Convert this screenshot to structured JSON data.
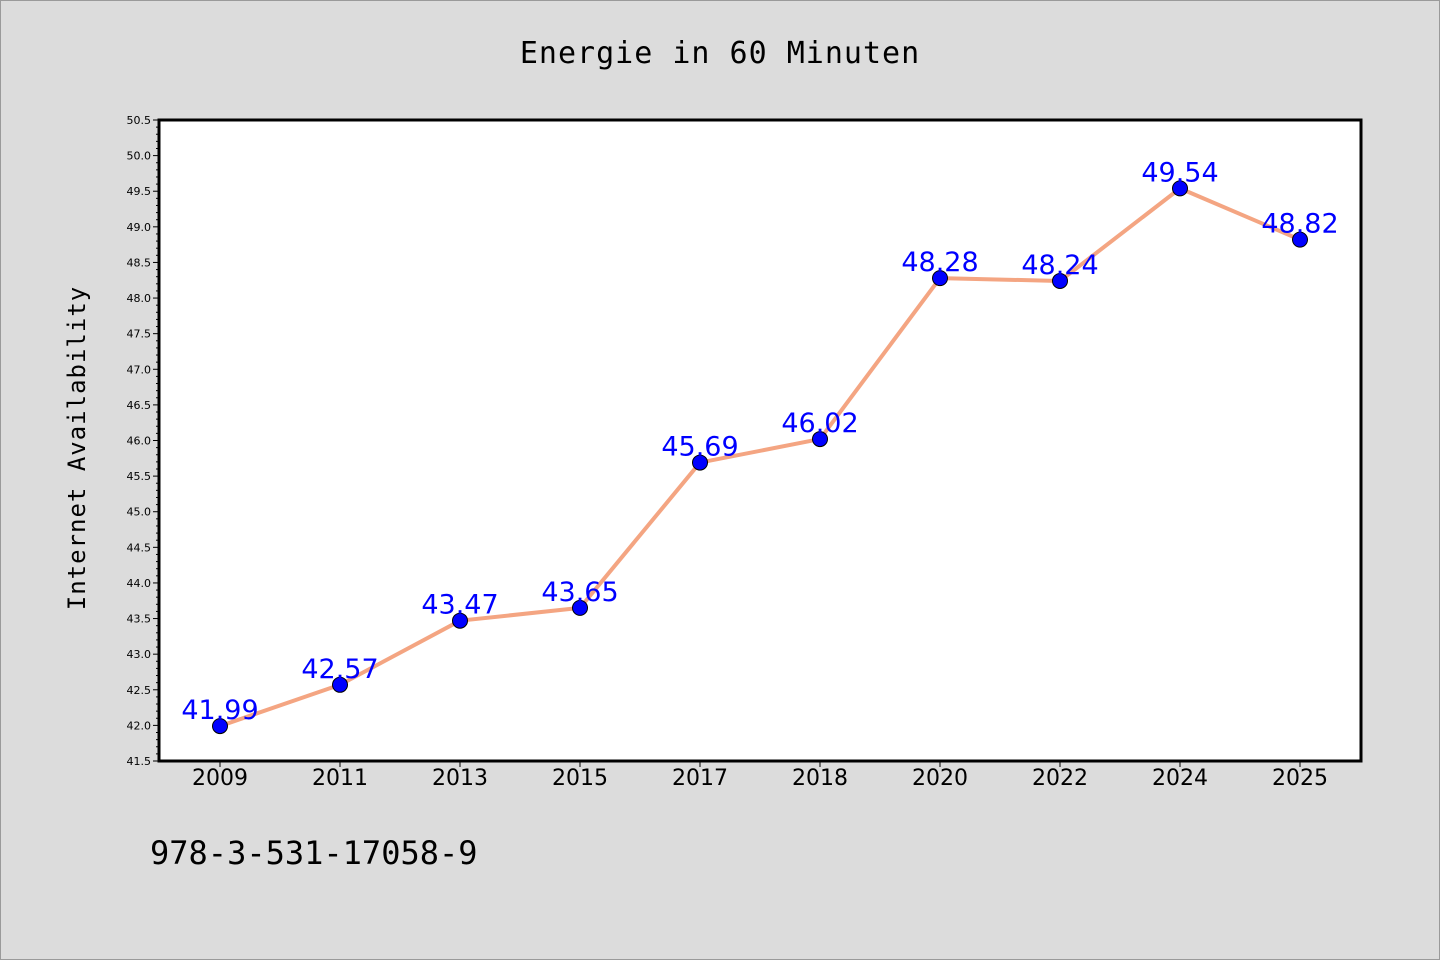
{
  "chart_data": {
    "type": "line",
    "title": "Energie in 60 Minuten",
    "xlabel": "",
    "ylabel": "Internet Availability",
    "categories": [
      "2009",
      "2011",
      "2013",
      "2015",
      "2017",
      "2018",
      "2020",
      "2022",
      "2024",
      "2025"
    ],
    "series": [
      {
        "values": [
          41.99,
          42.57,
          43.47,
          43.65,
          45.69,
          46.02,
          48.28,
          48.24,
          49.54,
          48.82
        ],
        "labels": [
          "41.99",
          "42.57",
          "43.47",
          "43.65",
          "45.69",
          "46.02",
          "48.28",
          "48.24",
          "49.54",
          "48.82"
        ]
      }
    ],
    "ylim": [
      41.5,
      50.5
    ],
    "yticks": [
      "41.5",
      "42.0",
      "42.5",
      "43.0",
      "43.5",
      "44.0",
      "44.5",
      "45.0",
      "45.5",
      "46.0",
      "46.5",
      "47.0",
      "47.5",
      "48.0",
      "48.5",
      "49.0",
      "49.5",
      "50.0",
      "50.5"
    ],
    "grid": false,
    "colors": {
      "line": "#f4a582",
      "marker": "#0000ff",
      "label": "#0000ff",
      "background": "#dcdcdc",
      "plot_background": "#ffffff",
      "axis": "#000000"
    }
  },
  "footer": {
    "isbn": "978-3-531-17058-9"
  }
}
